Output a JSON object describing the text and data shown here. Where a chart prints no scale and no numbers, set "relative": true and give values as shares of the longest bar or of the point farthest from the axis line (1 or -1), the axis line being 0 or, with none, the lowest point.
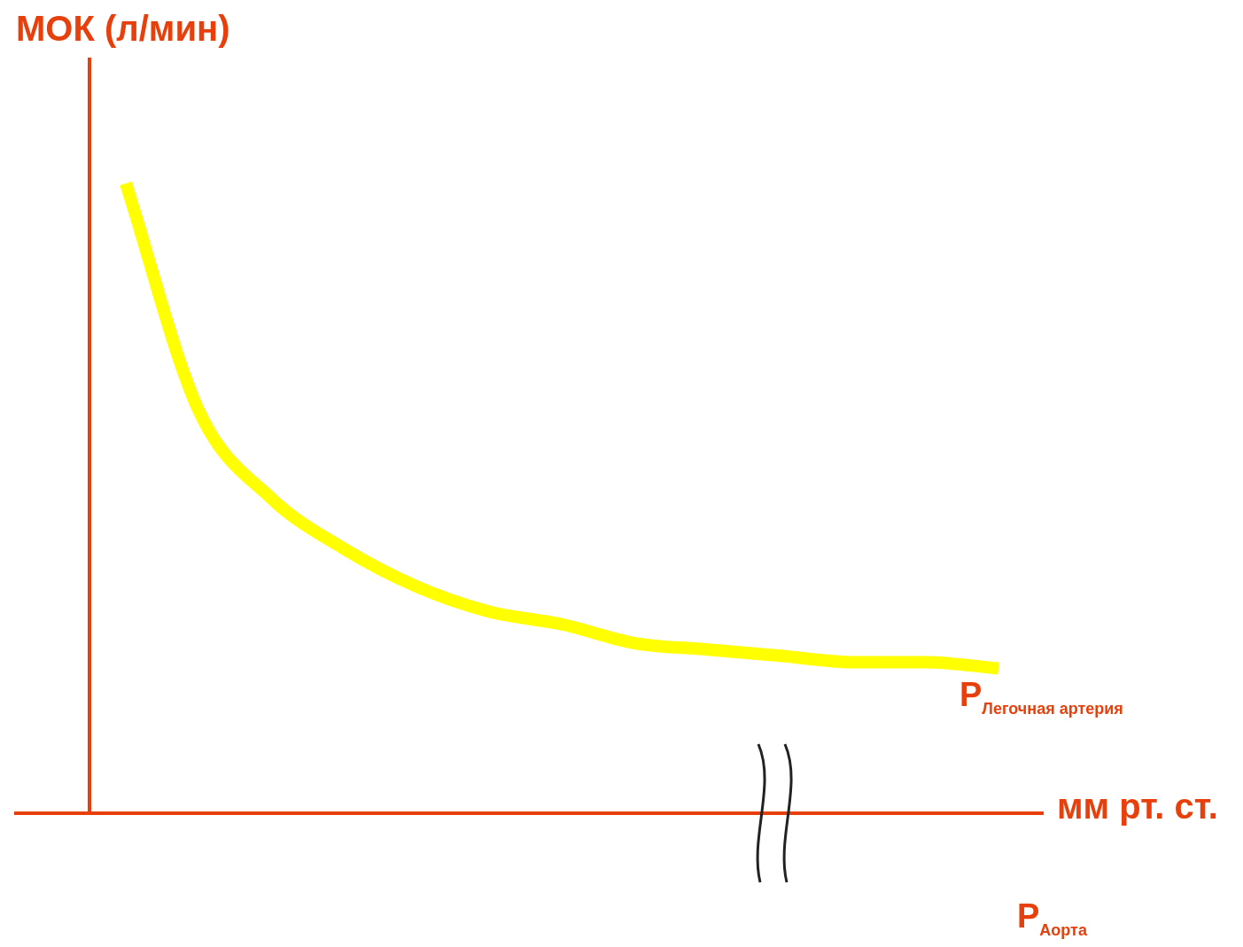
{
  "chart_data": {
    "type": "line",
    "relative": true,
    "ylabel": "МОК (л/мин)",
    "xlabel": "мм рт. ст.",
    "categories": [
      null,
      null,
      null,
      null,
      null,
      null,
      null,
      null,
      null,
      null,
      null,
      null,
      null
    ],
    "series": [
      {
        "color": "#ffff00",
        "values": [
          1,
          0.64,
          0.5,
          0.42,
          0.36,
          0.32,
          0.3,
          0.27,
          0.26,
          0.25,
          0.24,
          0.24,
          0.23
        ]
      }
    ],
    "annotations": [
      "P$_{Легочная артерия}$",
      "P$_{Аорта}$"
    ],
    "legend": false,
    "marker": "none",
    "line_style": "solid"
  }
}
